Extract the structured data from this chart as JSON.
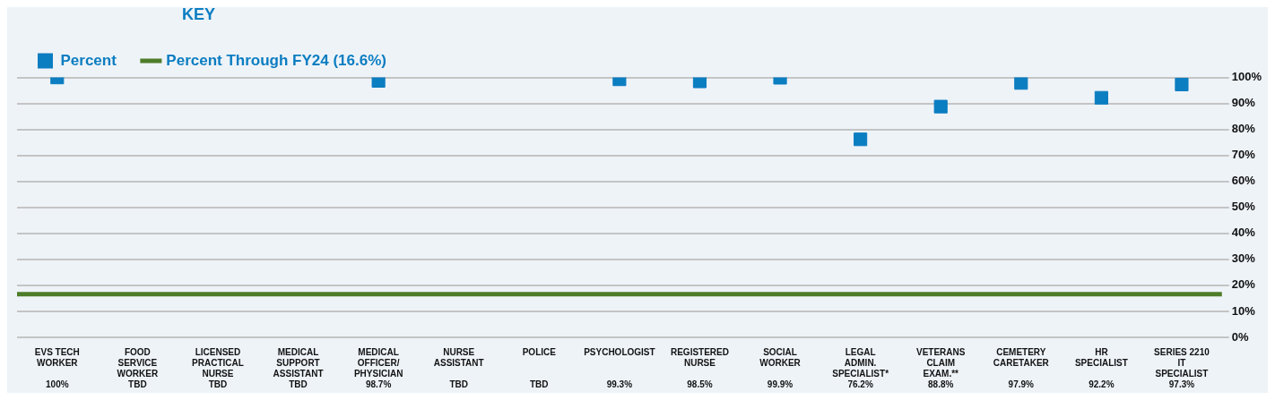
{
  "chart_data": {
    "type": "scatter",
    "legend_title": "KEY",
    "categories": [
      "EVS TECH WORKER",
      "FOOD SERVICE WORKER",
      "LICENSED PRACTICAL NURSE",
      "MEDICAL SUPPORT ASSISTANT",
      "MEDICAL OFFICER/ PHYSICIAN",
      "NURSE ASSISTANT",
      "POLICE",
      "PSYCHOLOGIST",
      "REGISTERED NURSE",
      "SOCIAL WORKER",
      "LEGAL ADMIN. SPECIALIST*",
      "VETERANS CLAIM EXAM.**",
      "CEMETERY CARETAKER",
      "HR SPECIALIST",
      "SERIES 2210 IT SPECIALIST"
    ],
    "series": [
      {
        "name": "Percent",
        "color": "#0b7dc1",
        "values": [
          100,
          null,
          null,
          null,
          98.7,
          null,
          null,
          99.3,
          98.5,
          99.9,
          76.2,
          88.8,
          97.9,
          92.2,
          97.3
        ],
        "value_labels": [
          "100%",
          "TBD",
          "TBD",
          "TBD",
          "98.7%",
          "TBD",
          "TBD",
          "99.3%",
          "98.5%",
          "99.9%",
          "76.2%",
          "88.8%",
          "97.9%",
          "92.2%",
          "97.3%"
        ]
      }
    ],
    "ref_lines": [
      {
        "axis": "y",
        "value": 16.6,
        "label": "Percent Through FY24 (16.6%)",
        "color": "#4e7d2a"
      }
    ],
    "ylim": [
      0,
      100
    ],
    "yticks": [
      {
        "value": 0,
        "label": "0%"
      },
      {
        "value": 10,
        "label": "10%"
      },
      {
        "value": 20,
        "label": "20%"
      },
      {
        "value": 30,
        "label": "30%"
      },
      {
        "value": 40,
        "label": "40%"
      },
      {
        "value": 50,
        "label": "50%"
      },
      {
        "value": 60,
        "label": "60%"
      },
      {
        "value": 70,
        "label": "70%"
      },
      {
        "value": 80,
        "label": "80%"
      },
      {
        "value": 90,
        "label": "90%"
      },
      {
        "value": 100,
        "label": "100%"
      }
    ],
    "grid": "y",
    "legend": "top left",
    "marker": "square"
  }
}
